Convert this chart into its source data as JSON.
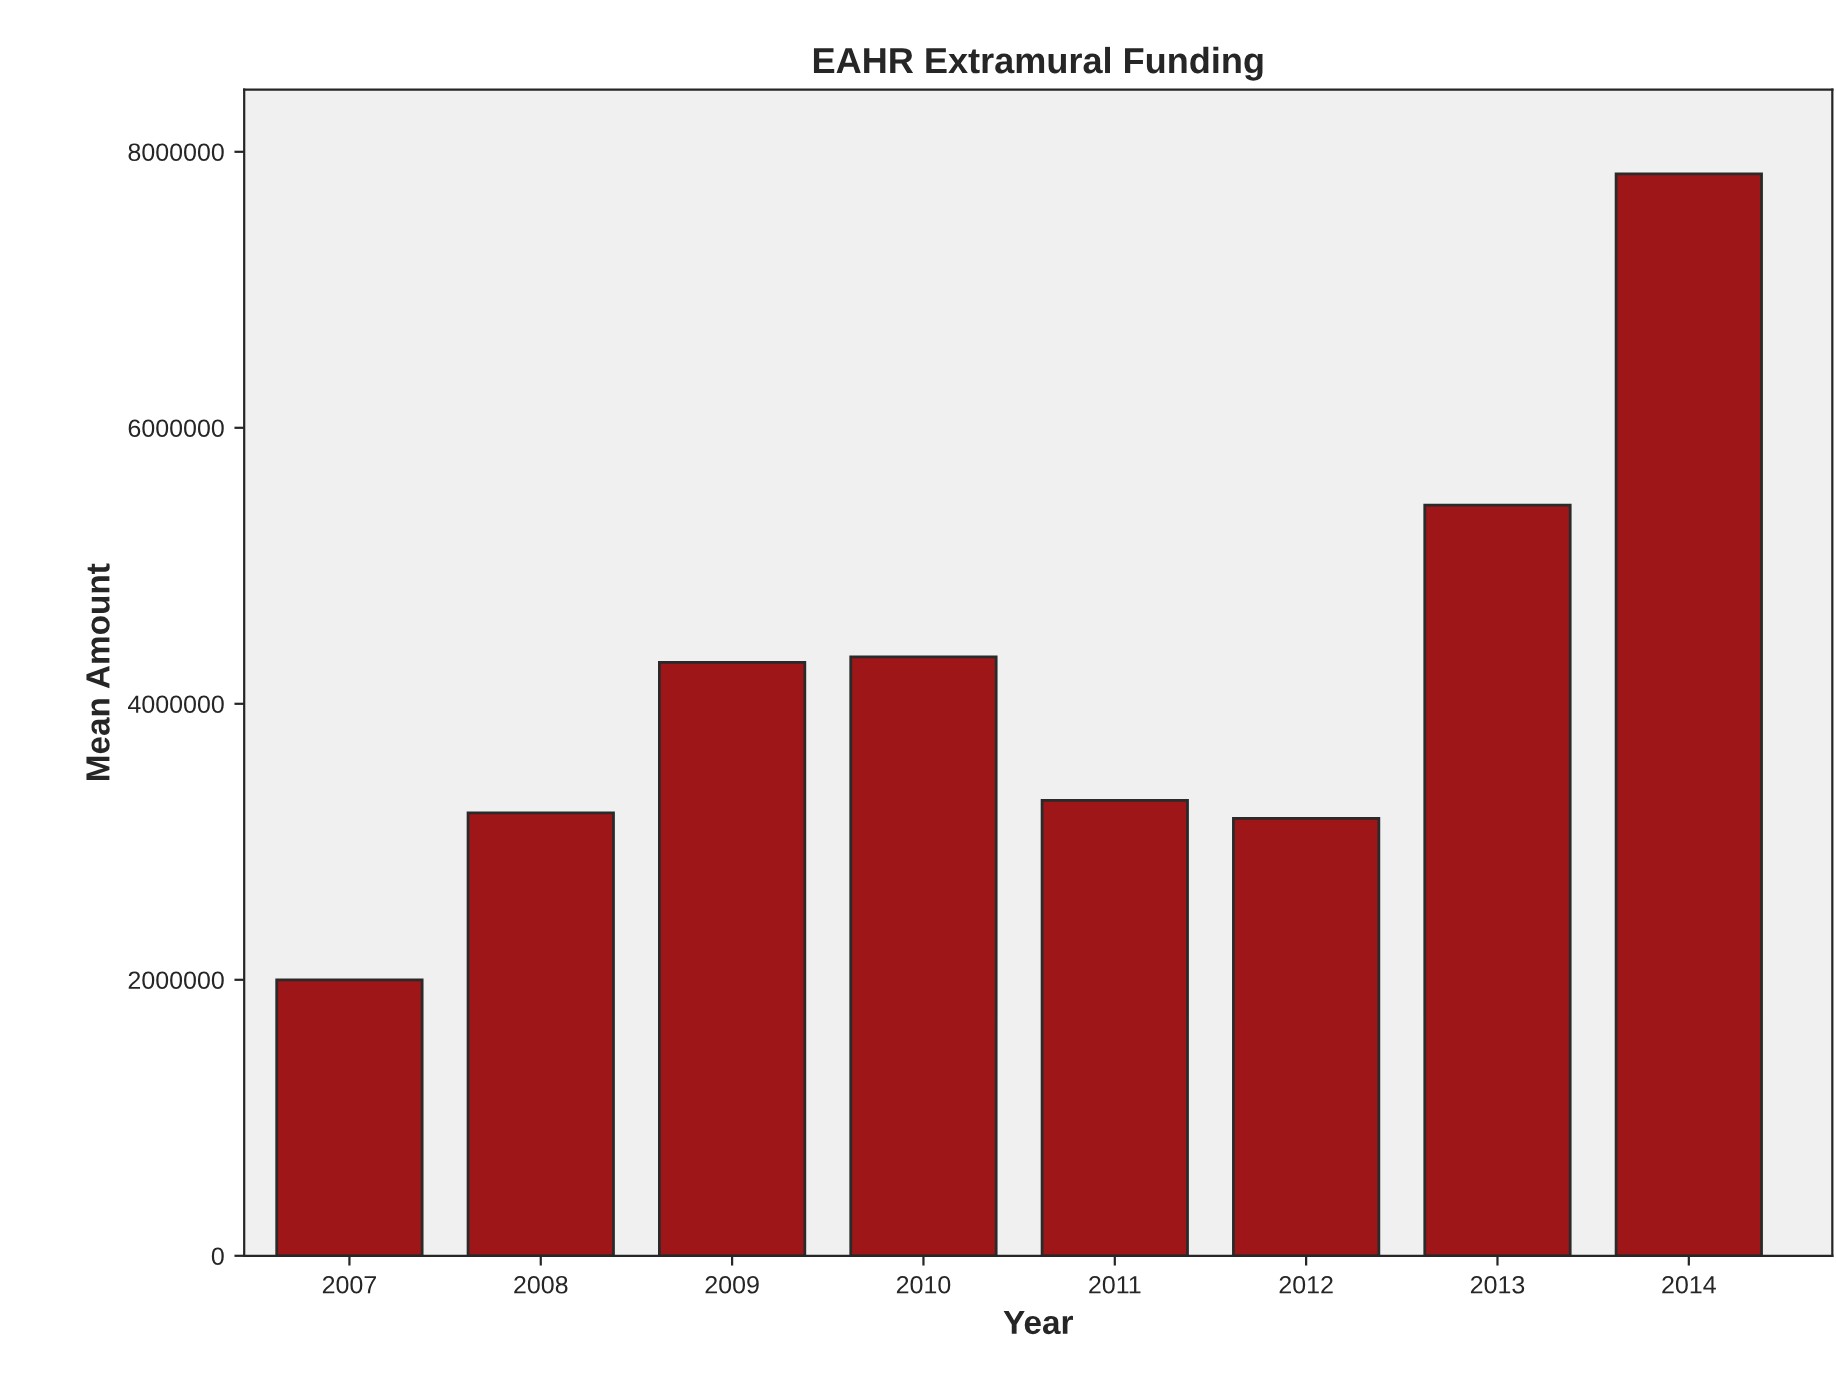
{
  "chart_data": {
    "type": "bar",
    "title": "EAHR Extramural Funding",
    "xlabel": "Year",
    "ylabel": "Mean Amount",
    "categories": [
      "2007",
      "2008",
      "2009",
      "2010",
      "2011",
      "2012",
      "2013",
      "2014"
    ],
    "values": [
      2000000,
      3210000,
      4300000,
      4340000,
      3300000,
      3170000,
      5440000,
      7840000
    ],
    "color": "#9e1618",
    "ylim": [
      0,
      8450000
    ],
    "yticks": [
      0,
      2000000,
      4000000,
      6000000,
      8000000
    ],
    "grid": false
  }
}
